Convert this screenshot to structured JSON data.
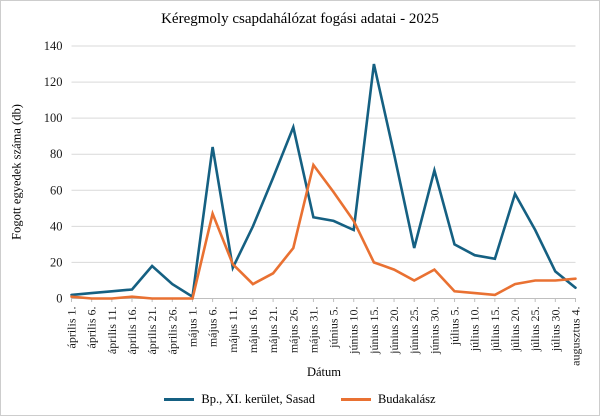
{
  "chart_data": {
    "type": "line",
    "title": "Kéregmoly csapdahálózat fogási adatai - 2025",
    "xlabel": "Dátum",
    "ylabel": "Fogott egyedek száma (db)",
    "ylim": [
      0,
      140
    ],
    "ytick_step": 20,
    "grid": true,
    "legend_position": "bottom",
    "categories": [
      "április 1.",
      "április 6.",
      "április 11.",
      "április 16.",
      "április 21.",
      "április 26.",
      "május 1.",
      "május 6.",
      "május 11.",
      "május 16.",
      "május 21.",
      "május 26.",
      "május 31.",
      "június 5.",
      "június 10.",
      "június 15.",
      "június 20.",
      "június 25.",
      "június 30.",
      "július 5.",
      "július 10.",
      "július 15.",
      "július 20.",
      "július 25.",
      "július 30.",
      "augusztus 4."
    ],
    "series": [
      {
        "name": "Bp., XI. kerület, Sasad",
        "color": "#156082",
        "values": [
          2,
          3,
          4,
          5,
          18,
          8,
          1,
          84,
          17,
          40,
          67,
          95,
          45,
          43,
          38,
          130,
          80,
          28,
          71,
          30,
          24,
          22,
          58,
          38,
          15,
          6
        ]
      },
      {
        "name": "Budakalász",
        "color": "#E97132",
        "values": [
          1,
          0,
          0,
          1,
          0,
          0,
          0,
          47,
          19,
          8,
          14,
          28,
          74,
          59,
          43,
          20,
          16,
          10,
          16,
          4,
          3,
          2,
          8,
          10,
          10,
          11
        ]
      }
    ],
    "colors": {
      "gridline": "#D9D9D9",
      "axis_line": "#BFBFBF",
      "tick_text": "#1a1a1a",
      "title_text": "#000000"
    }
  }
}
